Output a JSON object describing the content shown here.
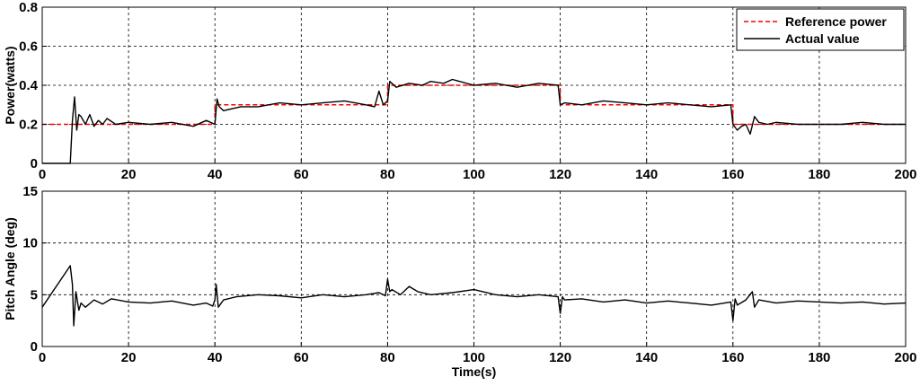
{
  "chart_data": [
    {
      "type": "line",
      "xlabel": "",
      "ylabel": "Power(watts)",
      "xlim": [
        0,
        200
      ],
      "ylim": [
        0,
        0.8
      ],
      "xticks": [
        0,
        20,
        40,
        60,
        80,
        100,
        120,
        140,
        160,
        180,
        200
      ],
      "yticks": [
        0,
        0.2,
        0.4,
        0.6,
        0.8
      ],
      "ytick_labels": [
        "0",
        "0.2",
        "0.4",
        "0.6",
        "0.8"
      ],
      "grid": true,
      "legend_position": "top-right",
      "series": [
        {
          "name": "Reference power",
          "color": "#ff0000",
          "style": "dashed",
          "x": [
            0,
            40,
            40,
            80,
            80,
            120,
            120,
            160,
            160,
            200
          ],
          "y": [
            0.2,
            0.2,
            0.3,
            0.3,
            0.4,
            0.4,
            0.3,
            0.3,
            0.2,
            0.2
          ]
        },
        {
          "name": "Actual value",
          "color": "#000000",
          "style": "solid",
          "x": [
            0,
            6.5,
            7,
            7.5,
            8,
            8.5,
            9,
            10,
            11,
            12,
            13,
            14,
            15,
            17,
            20,
            25,
            30,
            35,
            38,
            40,
            40.5,
            41,
            42,
            44,
            46,
            50,
            55,
            60,
            65,
            70,
            75,
            77,
            78,
            79,
            80,
            80.5,
            82,
            85,
            88,
            90,
            93,
            95,
            100,
            105,
            110,
            115,
            119.5,
            120,
            121,
            125,
            130,
            135,
            140,
            145,
            150,
            155,
            159.5,
            160,
            161,
            162,
            163,
            164,
            165,
            166,
            168,
            170,
            175,
            180,
            185,
            190,
            195,
            200
          ],
          "y": [
            0,
            0,
            0.22,
            0.34,
            0.17,
            0.25,
            0.24,
            0.2,
            0.25,
            0.19,
            0.22,
            0.2,
            0.23,
            0.2,
            0.21,
            0.2,
            0.21,
            0.19,
            0.22,
            0.2,
            0.33,
            0.29,
            0.27,
            0.28,
            0.29,
            0.29,
            0.31,
            0.3,
            0.31,
            0.32,
            0.3,
            0.29,
            0.37,
            0.3,
            0.32,
            0.42,
            0.39,
            0.41,
            0.4,
            0.42,
            0.41,
            0.43,
            0.4,
            0.41,
            0.39,
            0.41,
            0.4,
            0.3,
            0.31,
            0.3,
            0.32,
            0.31,
            0.3,
            0.31,
            0.3,
            0.29,
            0.3,
            0.2,
            0.17,
            0.19,
            0.2,
            0.15,
            0.24,
            0.21,
            0.2,
            0.21,
            0.2,
            0.2,
            0.2,
            0.21,
            0.2,
            0.2
          ]
        }
      ]
    },
    {
      "type": "line",
      "xlabel": "Time(s)",
      "ylabel": "Pitch Angle (deg)",
      "xlim": [
        0,
        200
      ],
      "ylim": [
        0,
        15
      ],
      "xticks": [
        0,
        20,
        40,
        60,
        80,
        100,
        120,
        140,
        160,
        180,
        200
      ],
      "yticks": [
        0,
        5,
        10,
        15
      ],
      "ytick_labels": [
        "0",
        "5",
        "10",
        "15"
      ],
      "grid": true,
      "series": [
        {
          "color": "#000000",
          "style": "solid",
          "x": [
            0,
            6.5,
            7,
            7.3,
            7.8,
            8.5,
            9,
            10,
            12,
            14,
            16,
            20,
            25,
            30,
            35,
            38,
            39.5,
            40,
            40.3,
            40.8,
            42,
            45,
            50,
            55,
            60,
            65,
            70,
            75,
            78,
            79.5,
            80,
            80.5,
            81,
            83,
            85,
            87,
            90,
            95,
            100,
            105,
            110,
            115,
            119.5,
            120,
            120.5,
            121,
            125,
            130,
            135,
            140,
            145,
            150,
            155,
            159.5,
            160,
            160.5,
            161,
            163,
            164.5,
            165,
            166,
            170,
            175,
            180,
            185,
            190,
            195,
            200
          ],
          "y": [
            3.8,
            7.8,
            6.0,
            2.0,
            5.3,
            3.5,
            4.2,
            3.8,
            4.5,
            4.1,
            4.6,
            4.3,
            4.2,
            4.4,
            4.0,
            4.2,
            3.9,
            4.5,
            6.0,
            3.8,
            4.5,
            4.8,
            5.0,
            4.9,
            4.7,
            5.0,
            4.8,
            5.0,
            5.2,
            4.9,
            6.5,
            5.3,
            5.5,
            5.0,
            5.8,
            5.3,
            5.0,
            5.2,
            5.5,
            5.0,
            4.8,
            5.0,
            4.8,
            3.2,
            4.8,
            4.5,
            4.6,
            4.3,
            4.5,
            4.2,
            4.4,
            4.2,
            4.0,
            4.3,
            2.5,
            4.6,
            4.0,
            4.5,
            5.3,
            3.8,
            4.5,
            4.2,
            4.4,
            4.3,
            4.2,
            4.3,
            4.1,
            4.2
          ]
        }
      ]
    }
  ]
}
